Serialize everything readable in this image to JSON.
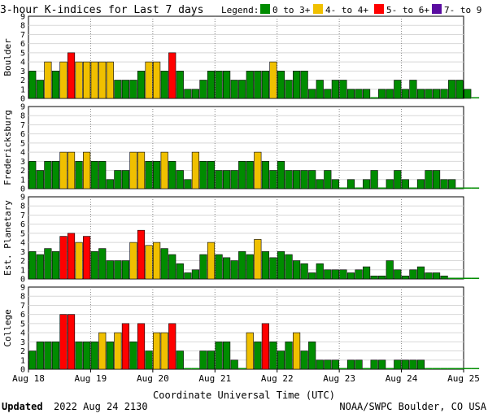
{
  "header": {
    "title": "3-hour K-indices for Last 7 days",
    "legend_label": "Legend:",
    "legend": [
      {
        "label": "0 to 3+",
        "color": "#008c00"
      },
      {
        "label": "4- to 4+",
        "color": "#f0c000"
      },
      {
        "label": "5- to 6+",
        "color": "#ff0000"
      },
      {
        "label": "7- to 9",
        "color": "#5a0ca0"
      }
    ]
  },
  "footer": {
    "updated_label": "Updated",
    "updated_value": "2022 Aug 24 2130",
    "source": "NOAA/SWPC Boulder, CO USA"
  },
  "chart_data": [
    {
      "type": "bar",
      "ylabel": "Boulder",
      "ylim": [
        0,
        9
      ],
      "xlabel": "Coordinate Universal Time (UTC)",
      "x_ticks": [
        "Aug 18",
        "Aug 19",
        "Aug 20",
        "Aug 21",
        "Aug 22",
        "Aug 23",
        "Aug 24",
        "Aug 25"
      ],
      "values": [
        3,
        2,
        4,
        3,
        4,
        5,
        4,
        4,
        4,
        4,
        4,
        2,
        2,
        2,
        3,
        4,
        4,
        3,
        5,
        3,
        1,
        1,
        2,
        3,
        3,
        3,
        2,
        2,
        3,
        3,
        3,
        4,
        3,
        2,
        3,
        3,
        1,
        2,
        1,
        2,
        2,
        1,
        1,
        1,
        0,
        1,
        1,
        2,
        1,
        2,
        1,
        1,
        1,
        1,
        2,
        2,
        1,
        0
      ]
    },
    {
      "type": "bar",
      "ylabel": "Fredericksburg",
      "ylim": [
        0,
        9
      ],
      "x_ticks": [
        "Aug 18",
        "Aug 19",
        "Aug 20",
        "Aug 21",
        "Aug 22",
        "Aug 23",
        "Aug 24",
        "Aug 25"
      ],
      "values": [
        3,
        2,
        3,
        3,
        4,
        4,
        3,
        4,
        3,
        3,
        1,
        2,
        2,
        4,
        4,
        3,
        3,
        4,
        3,
        2,
        1,
        4,
        3,
        3,
        2,
        2,
        2,
        3,
        3,
        4,
        3,
        2,
        3,
        2,
        2,
        2,
        2,
        1,
        2,
        1,
        0,
        1,
        0,
        1,
        2,
        0,
        1,
        2,
        1,
        0,
        1,
        2,
        2,
        1,
        1,
        0,
        0,
        0
      ]
    },
    {
      "type": "bar",
      "ylabel": "Est. Planetary",
      "ylim": [
        0,
        9
      ],
      "x_ticks": [
        "Aug 18",
        "Aug 19",
        "Aug 20",
        "Aug 21",
        "Aug 22",
        "Aug 23",
        "Aug 24",
        "Aug 25"
      ],
      "values": [
        3,
        2.67,
        3.33,
        3,
        4.67,
        5,
        4,
        4.67,
        3,
        3.33,
        2,
        2,
        2,
        4,
        5.33,
        3.67,
        4,
        3.33,
        2.67,
        1.67,
        0.67,
        1,
        2.67,
        4,
        2.67,
        2.33,
        2,
        3,
        2.67,
        4.33,
        3,
        2.33,
        3,
        2.67,
        2,
        1.67,
        0.67,
        1.67,
        1,
        1,
        1,
        0.67,
        1,
        1.33,
        0.33,
        0.33,
        2,
        1,
        0.33,
        1,
        1.33,
        0.67,
        0.67,
        0.33,
        0,
        0,
        0,
        0
      ]
    },
    {
      "type": "bar",
      "ylabel": "College",
      "ylim": [
        0,
        9
      ],
      "x_ticks": [
        "Aug 18",
        "Aug 19",
        "Aug 20",
        "Aug 21",
        "Aug 22",
        "Aug 23",
        "Aug 24",
        "Aug 25"
      ],
      "values": [
        2,
        3,
        3,
        3,
        6,
        6,
        3,
        3,
        3,
        4,
        3,
        4,
        5,
        3,
        5,
        2,
        4,
        4,
        5,
        2,
        0,
        0,
        2,
        2,
        3,
        3,
        1,
        0,
        4,
        3,
        5,
        3,
        2,
        3,
        4,
        2,
        3,
        1,
        1,
        1,
        0,
        1,
        1,
        0,
        1,
        1,
        0,
        1,
        1,
        1,
        1,
        0,
        0,
        0,
        0,
        0,
        0,
        0
      ]
    }
  ]
}
